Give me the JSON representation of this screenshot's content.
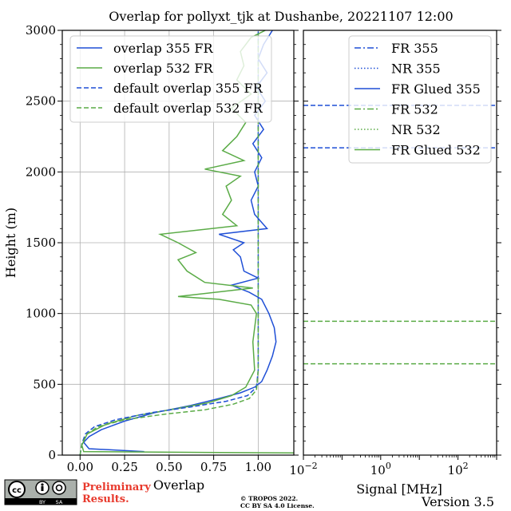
{
  "title": "Overlap for pollyxt_tjk at Dushanbe, 20221107 12:00",
  "license_line1": "© TROPOS 2022.",
  "license_line2": "CC BY SA 4.0 License.",
  "preliminary_line1": "Preliminary",
  "preliminary_line2": "Results.",
  "version": "Version 3.5",
  "cc_badge": {
    "by": "BY",
    "sa": "SA"
  },
  "chart_data": [
    {
      "type": "line",
      "xlabel": "Overlap",
      "ylabel": "Height (m)",
      "xlim": [
        -0.1,
        1.2
      ],
      "ylim": [
        0,
        3000
      ],
      "xticks": [
        0.0,
        0.25,
        0.5,
        0.75,
        1.0
      ],
      "xtick_labels": [
        "0.00",
        "0.25",
        "0.50",
        "0.75",
        "1.00"
      ],
      "yticks": [
        0,
        500,
        1000,
        1500,
        2000,
        2500,
        3000
      ],
      "ytick_labels": [
        "0",
        "500",
        "1000",
        "1500",
        "2000",
        "2500",
        "3000"
      ],
      "grid": true,
      "legend_position": "top-right",
      "series": [
        {
          "name": "overlap 355 FR",
          "color": "#1f4fd6",
          "style": "solid",
          "points": [
            [
              0.36,
              25
            ],
            [
              0.05,
              45
            ],
            [
              0.02,
              90
            ],
            [
              0.05,
              130
            ],
            [
              0.12,
              180
            ],
            [
              0.25,
              240
            ],
            [
              0.42,
              300
            ],
            [
              0.62,
              350
            ],
            [
              0.78,
              400
            ],
            [
              0.9,
              440
            ],
            [
              0.98,
              480
            ],
            [
              1.02,
              520
            ],
            [
              1.05,
              600
            ],
            [
              1.08,
              700
            ],
            [
              1.1,
              800
            ],
            [
              1.09,
              900
            ],
            [
              1.06,
              1000
            ],
            [
              1.02,
              1100
            ],
            [
              0.95,
              1150
            ],
            [
              0.85,
              1200
            ],
            [
              1.0,
              1250
            ],
            [
              0.92,
              1300
            ],
            [
              0.9,
              1400
            ],
            [
              0.86,
              1450
            ],
            [
              0.92,
              1500
            ],
            [
              0.78,
              1560
            ],
            [
              1.05,
              1600
            ],
            [
              0.98,
              1700
            ],
            [
              0.96,
              1800
            ],
            [
              1.0,
              1900
            ],
            [
              0.98,
              2000
            ],
            [
              1.02,
              2100
            ],
            [
              0.97,
              2200
            ],
            [
              1.03,
              2300
            ],
            [
              0.98,
              2400
            ],
            [
              1.04,
              2500
            ],
            [
              0.99,
              2600
            ],
            [
              1.05,
              2700
            ],
            [
              1.0,
              2800
            ],
            [
              1.03,
              2900
            ],
            [
              1.08,
              3000
            ]
          ]
        },
        {
          "name": "overlap 532 FR",
          "color": "#5aab46",
          "style": "solid",
          "points": [
            [
              1.2,
              15
            ],
            [
              0.02,
              25
            ],
            [
              0.01,
              70
            ],
            [
              0.04,
              150
            ],
            [
              0.15,
              220
            ],
            [
              0.32,
              280
            ],
            [
              0.55,
              330
            ],
            [
              0.72,
              370
            ],
            [
              0.85,
              420
            ],
            [
              0.93,
              480
            ],
            [
              0.98,
              600
            ],
            [
              0.97,
              800
            ],
            [
              0.99,
              1000
            ],
            [
              0.96,
              1060
            ],
            [
              0.78,
              1100
            ],
            [
              0.55,
              1120
            ],
            [
              0.97,
              1180
            ],
            [
              0.7,
              1220
            ],
            [
              0.6,
              1300
            ],
            [
              0.55,
              1380
            ],
            [
              0.65,
              1430
            ],
            [
              0.55,
              1500
            ],
            [
              0.45,
              1560
            ],
            [
              0.88,
              1620
            ],
            [
              0.8,
              1700
            ],
            [
              0.85,
              1800
            ],
            [
              0.82,
              1900
            ],
            [
              0.9,
              1970
            ],
            [
              0.7,
              2020
            ],
            [
              0.92,
              2080
            ],
            [
              0.8,
              2150
            ],
            [
              0.88,
              2250
            ],
            [
              0.93,
              2350
            ],
            [
              0.85,
              2450
            ],
            [
              0.96,
              2550
            ],
            [
              0.88,
              2650
            ],
            [
              0.92,
              2750
            ],
            [
              0.9,
              2850
            ],
            [
              0.96,
              2950
            ],
            [
              1.04,
              3000
            ]
          ]
        },
        {
          "name": "default overlap 355 FR",
          "color": "#1f4fd6",
          "style": "dashed",
          "points": [
            [
              0.0,
              0
            ],
            [
              0.01,
              80
            ],
            [
              0.03,
              150
            ],
            [
              0.08,
              200
            ],
            [
              0.2,
              250
            ],
            [
              0.4,
              300
            ],
            [
              0.62,
              340
            ],
            [
              0.82,
              380
            ],
            [
              0.94,
              420
            ],
            [
              0.99,
              480
            ],
            [
              1.0,
              600
            ],
            [
              1.0,
              3000
            ]
          ]
        },
        {
          "name": "default overlap 532 FR",
          "color": "#5aab46",
          "style": "dashed",
          "points": [
            [
              0.0,
              0
            ],
            [
              0.01,
              80
            ],
            [
              0.04,
              150
            ],
            [
              0.1,
              200
            ],
            [
              0.25,
              250
            ],
            [
              0.48,
              290
            ],
            [
              0.7,
              320
            ],
            [
              0.86,
              360
            ],
            [
              0.95,
              400
            ],
            [
              0.99,
              460
            ],
            [
              1.0,
              600
            ],
            [
              1.0,
              3000
            ]
          ]
        }
      ]
    },
    {
      "type": "line",
      "xlabel": "Signal [MHz]",
      "xscale": "log",
      "xlim": [
        0.01,
        1000
      ],
      "ylim": [
        0,
        3000
      ],
      "xticks": [
        0.01,
        1,
        100
      ],
      "xtick_labels": [
        {
          "base": "10",
          "exp": "−2"
        },
        {
          "base": "10",
          "exp": "0"
        },
        {
          "base": "10",
          "exp": "2"
        }
      ],
      "grid": false,
      "legend_position": "top-right",
      "series": [
        {
          "name": "FR 355",
          "color": "#1f4fd6",
          "style": "dashdot"
        },
        {
          "name": "NR 355",
          "color": "#1f4fd6",
          "style": "dotted"
        },
        {
          "name": "FR Glued 355",
          "color": "#1f4fd6",
          "style": "solid"
        },
        {
          "name": "FR 532",
          "color": "#5aab46",
          "style": "dashdot"
        },
        {
          "name": "NR 532",
          "color": "#5aab46",
          "style": "dotted"
        },
        {
          "name": "FR Glued 532",
          "color": "#5aab46",
          "style": "solid"
        }
      ],
      "reference_lines": [
        {
          "y": 2470,
          "color": "#1f4fd6",
          "style": "dashed"
        },
        {
          "y": 2170,
          "color": "#1f4fd6",
          "style": "dashed"
        },
        {
          "y": 945,
          "color": "#5aab46",
          "style": "dashed"
        },
        {
          "y": 645,
          "color": "#5aab46",
          "style": "dashed"
        }
      ]
    }
  ]
}
